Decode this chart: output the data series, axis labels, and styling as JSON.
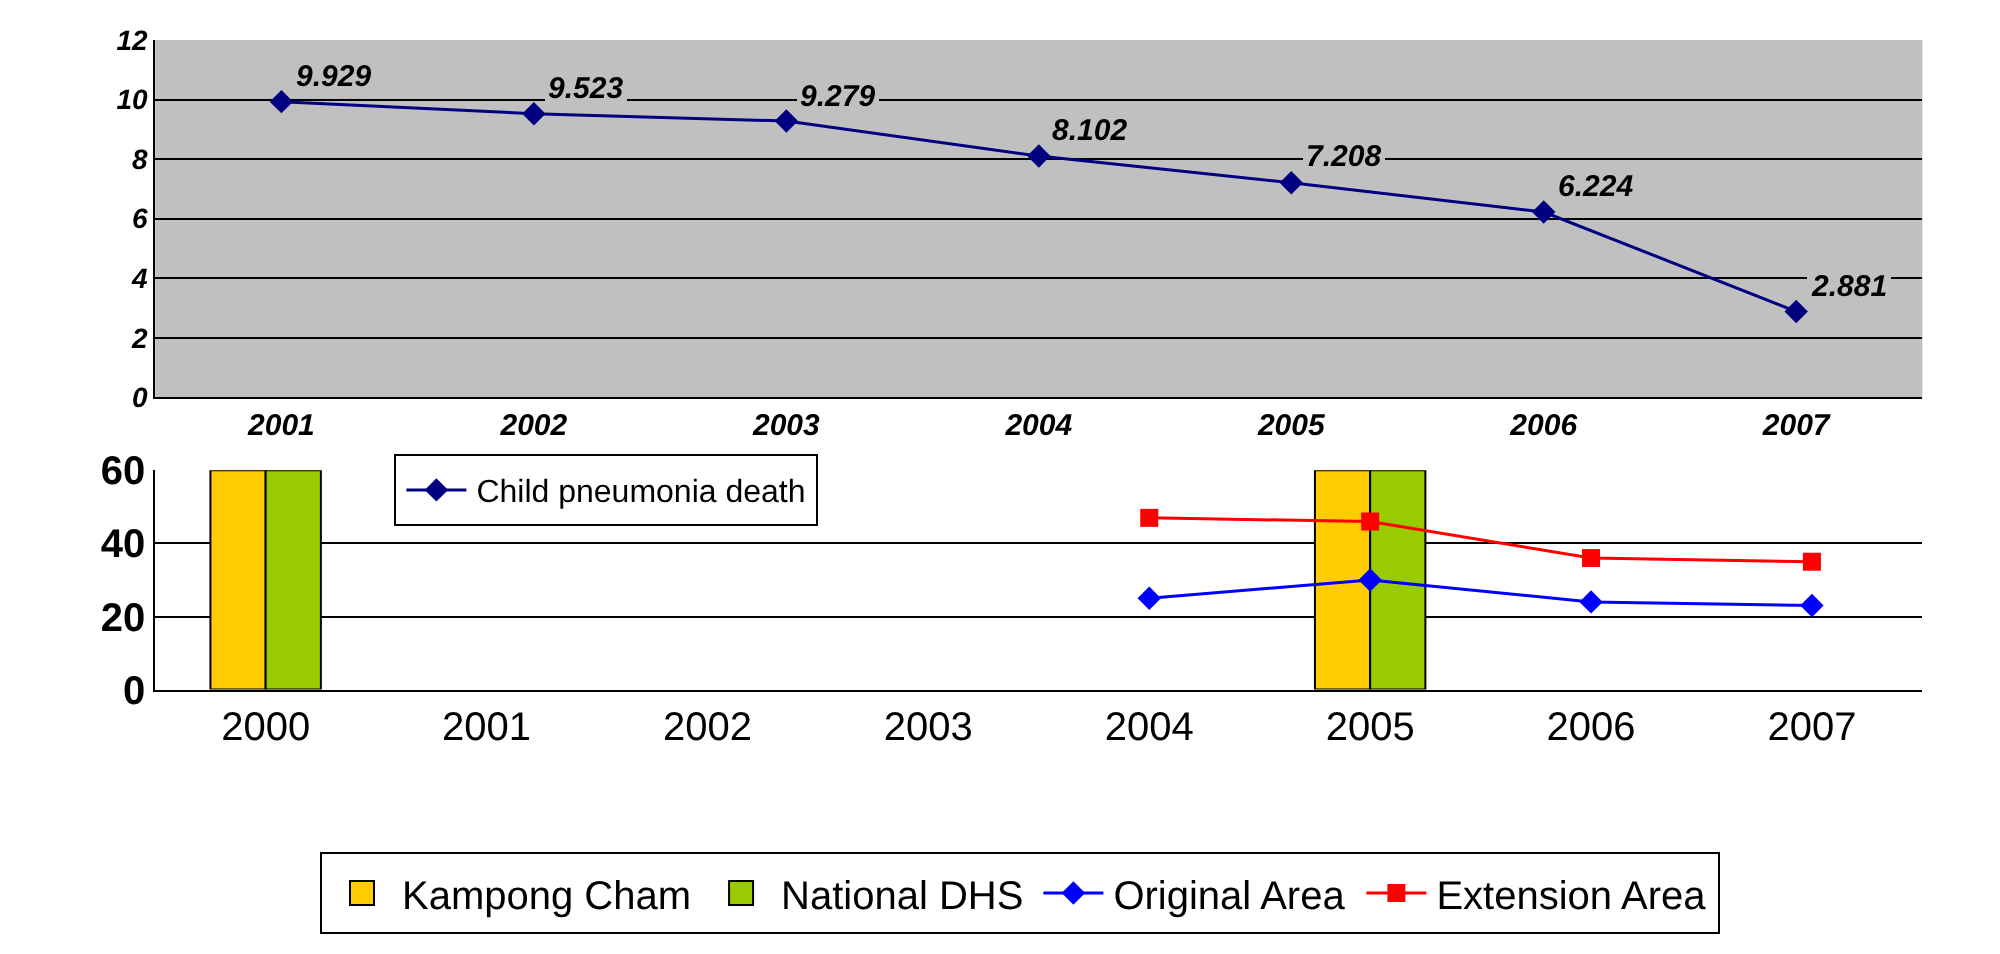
{
  "chart_data": [
    {
      "type": "line",
      "categories": [
        "2001",
        "2002",
        "2003",
        "2004",
        "2005",
        "2006",
        "2007"
      ],
      "ylim": [
        0,
        12
      ],
      "yticks": [
        0,
        2,
        4,
        6,
        8,
        10,
        12
      ],
      "grid": "y",
      "legend": "bottom",
      "marker": "diamond",
      "data_labels": true,
      "series": [
        {
          "name": "Child pneumonia death",
          "color": "#000080",
          "values": [
            9.929,
            9.523,
            9.279,
            8.102,
            7.208,
            6.224,
            2.881
          ]
        }
      ]
    },
    {
      "type": "bar",
      "categories": [
        "2000",
        "2001",
        "2002",
        "2003",
        "2004",
        "2005",
        "2006",
        "2007"
      ],
      "ylim": [
        0,
        60
      ],
      "yticks": [
        0,
        20,
        40,
        60
      ],
      "grid": "y",
      "legend": "bottom",
      "series": [
        {
          "name": "Kampong Cham",
          "color": "#ffcc00",
          "values": [
            60,
            null,
            null,
            null,
            null,
            60,
            null,
            null
          ]
        },
        {
          "name": "National DHS",
          "color": "#99cc00",
          "values": [
            60,
            null,
            null,
            null,
            null,
            60,
            null,
            null
          ]
        },
        {
          "name": "Original Area",
          "type": "line",
          "marker": "diamond",
          "color": "#0000ff",
          "values": [
            null,
            null,
            null,
            null,
            25,
            30,
            24,
            23
          ]
        },
        {
          "name": "Extension Area",
          "type": "line",
          "marker": "square",
          "color": "#ff0000",
          "values": [
            null,
            null,
            null,
            null,
            47,
            46,
            36,
            35
          ]
        }
      ]
    }
  ]
}
